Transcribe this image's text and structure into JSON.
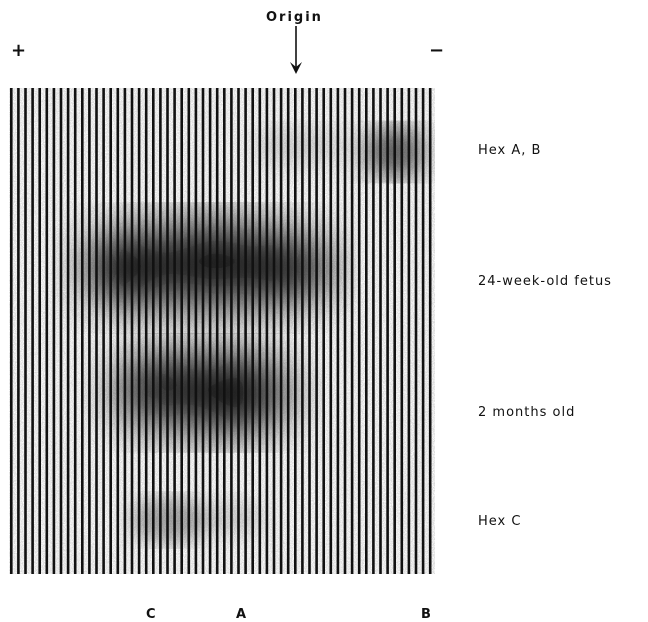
{
  "header": {
    "origin_label": "Origin",
    "anode_sign": "+",
    "cathode_sign": "−"
  },
  "bands": [
    {
      "label": "Hex A, B"
    },
    {
      "label": "24-week-old fetus"
    },
    {
      "label": "2 months old"
    },
    {
      "label": "Hex C"
    }
  ],
  "lanes": {
    "c": "C",
    "a": "A",
    "b": "B"
  },
  "colors": {
    "stripe": "#111111",
    "background": "#ffffff",
    "speckle": "#8a8a8a"
  }
}
